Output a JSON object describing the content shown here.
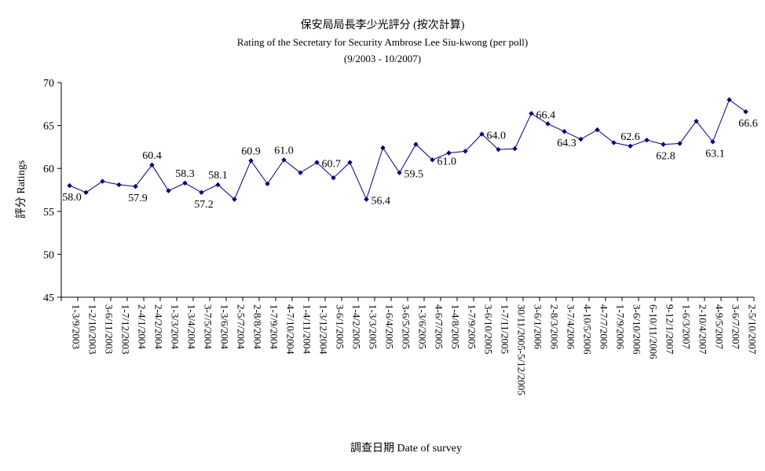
{
  "chart_data": {
    "type": "line",
    "title": "保安局局長李少光評分 (按次計算)",
    "subtitle": "Rating of the Secretary for Security Ambrose Lee Siu-kwong (per poll)",
    "period": "(9/2003 - 10/2007)",
    "xlabel": "調查日期 Date of survey",
    "ylabel": "評分 Ratings",
    "ylim": [
      45,
      70
    ],
    "yticks": [
      "45",
      "50",
      "55",
      "60",
      "65",
      "70"
    ],
    "grid": false,
    "line_color": "#000080",
    "marker_color": "#000080",
    "x_tick_labels": [
      "1-3/9/2003",
      "1-2/10/2003",
      "3-6/11/2003",
      "1-7/12/2003",
      "2-4/1/2004",
      "2-4/2/2004",
      "1-3/3/2004",
      "1-3/4/2004",
      "3-7/5/2004",
      "1-3/6/2004",
      "2-5/7/2004",
      "2-8/8/2004",
      "1-7/9/2004",
      "4-7/10/2004",
      "1-4/11/2004",
      "1-3/12/2004",
      "3-6/1/2005",
      "1-4/2/2005",
      "1-3/3/2005",
      "1-6/4/2005",
      "3-6/5/2005",
      "1-3/6/2005",
      "4-6/7/2005",
      "1-4/8/2005",
      "1-7/9/2005",
      "3-6/10/2005",
      "1-7/11/2005",
      "30/11/2005-5/12/2005",
      "3-6/1/2006",
      "2-8/3/2006",
      "3-7/4/2006",
      "4-10/5/2006",
      "4-7/7/2006",
      "1-7/9/2006",
      "3-6/10/2006",
      "6-10/11/2006",
      "9-12/1/2007",
      "1-6/3/2007",
      "2-10/4/2007",
      "4-9/5/2007",
      "3-6/7/2007",
      "2-5/10/2007"
    ],
    "series": [
      {
        "values": [
          58.0,
          57.2,
          58.5,
          58.1,
          57.9,
          60.4,
          57.4,
          58.3,
          57.2,
          58.1,
          56.4,
          60.9,
          58.2,
          61.0,
          59.5,
          60.7,
          58.9,
          60.7,
          56.4,
          62.4,
          59.5,
          62.8,
          61.0,
          61.8,
          62.0,
          64.0,
          62.2,
          62.3,
          66.4,
          65.2,
          64.3,
          63.4,
          64.5,
          63.0,
          62.6,
          63.3,
          62.8,
          62.9,
          65.5,
          63.1,
          68.0,
          66.6
        ]
      }
    ],
    "data_labels": [
      {
        "index": 0,
        "text": "58.0",
        "pos": "below"
      },
      {
        "index": 4,
        "text": "57.9",
        "pos": "below"
      },
      {
        "index": 5,
        "text": "60.4",
        "pos": "above"
      },
      {
        "index": 7,
        "text": "58.3",
        "pos": "above"
      },
      {
        "index": 8,
        "text": "57.2",
        "pos": "below"
      },
      {
        "index": 9,
        "text": "58.1",
        "pos": "above"
      },
      {
        "index": 11,
        "text": "60.9",
        "pos": "above"
      },
      {
        "index": 13,
        "text": "61.0",
        "pos": "above"
      },
      {
        "index": 15,
        "text": "60.7",
        "pos": "right"
      },
      {
        "index": 18,
        "text": "56.4",
        "pos": "right"
      },
      {
        "index": 20,
        "text": "59.5",
        "pos": "right"
      },
      {
        "index": 22,
        "text": "61.0",
        "pos": "right"
      },
      {
        "index": 25,
        "text": "64.0",
        "pos": "right"
      },
      {
        "index": 28,
        "text": "66.4",
        "pos": "right"
      },
      {
        "index": 30,
        "text": "64.3",
        "pos": "below"
      },
      {
        "index": 34,
        "text": "62.6",
        "pos": "above"
      },
      {
        "index": 36,
        "text": "62.8",
        "pos": "below"
      },
      {
        "index": 39,
        "text": "63.1",
        "pos": "below"
      },
      {
        "index": 41,
        "text": "66.6",
        "pos": "below"
      }
    ]
  }
}
